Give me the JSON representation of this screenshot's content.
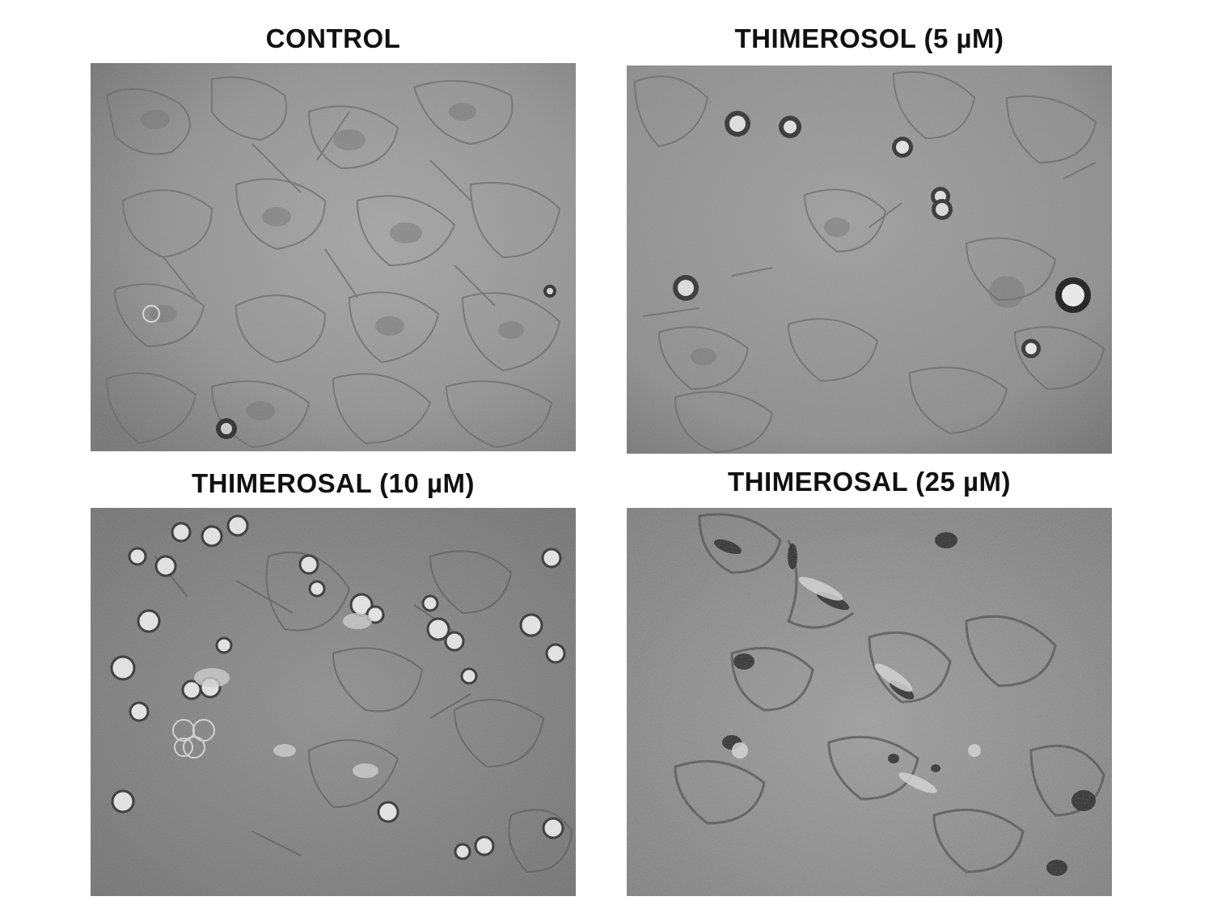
{
  "figure": {
    "panels": [
      {
        "id": "control",
        "title": "CONTROL"
      },
      {
        "id": "thimerosol-5",
        "title": "THIMEROSOL (5 µM)"
      },
      {
        "id": "thimerosal-10",
        "title": "THIMEROSAL (10 µM)"
      },
      {
        "id": "thimerosal-25",
        "title": "THIMEROSAL (25 µM)"
      }
    ]
  }
}
